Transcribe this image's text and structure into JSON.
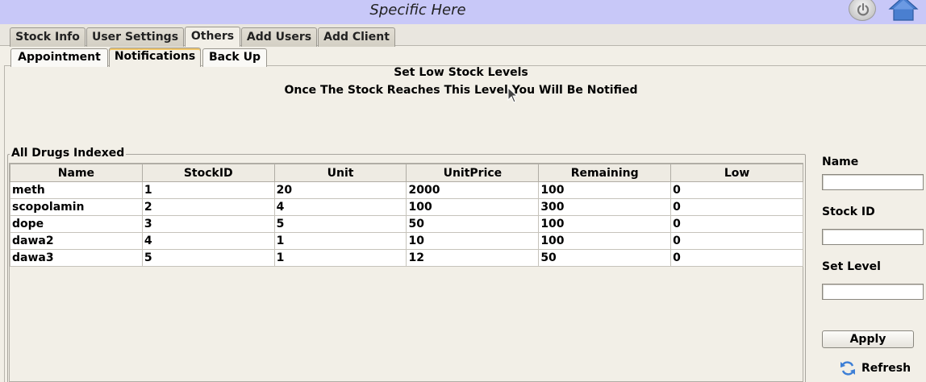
{
  "app": {
    "title": "Specific Here"
  },
  "main_tabs": [
    {
      "label": "Stock Info",
      "active": false
    },
    {
      "label": "User Settings",
      "active": false
    },
    {
      "label": "Others",
      "active": true
    },
    {
      "label": "Add Users",
      "active": false
    },
    {
      "label": "Add Client",
      "active": false
    }
  ],
  "sub_tabs": [
    {
      "label": "Appointment",
      "active": false
    },
    {
      "label": "Notifications",
      "active": true
    },
    {
      "label": "Back Up",
      "active": false
    }
  ],
  "headings": {
    "title": "Set Low Stock Levels",
    "subtitle": "Once The Stock Reaches This Level You Will Be Notified"
  },
  "drugs_group": {
    "label": "All Drugs Indexed",
    "columns": [
      "Name",
      "StockID",
      "Unit",
      "UnitPrice",
      "Remaining",
      "Low"
    ],
    "rows": [
      [
        "meth",
        "1",
        "20",
        "2000",
        "100",
        "0"
      ],
      [
        "scopolamin",
        "2",
        "4",
        "100",
        "300",
        "0"
      ],
      [
        "dope",
        "3",
        "5",
        "50",
        "100",
        "0"
      ],
      [
        "dawa2",
        "4",
        "1",
        "10",
        "100",
        "0"
      ],
      [
        "dawa3",
        "5",
        "1",
        "12",
        "50",
        "0"
      ]
    ]
  },
  "form": {
    "name_label": "Name",
    "name_value": "",
    "stock_id_label": "Stock ID",
    "stock_id_value": "",
    "set_level_label": "Set Level",
    "set_level_value": "",
    "apply_label": "Apply",
    "refresh_label": "Refresh"
  },
  "icons": {
    "power": "power-icon",
    "home": "home-icon",
    "refresh": "refresh-icon",
    "cursor": "mouse-cursor-icon"
  },
  "colors": {
    "titlebar": "#c8c8f8",
    "background": "#f2efe7",
    "home_icon": "#4a7fd0",
    "active_tab_highlight": "#f1c76a"
  }
}
